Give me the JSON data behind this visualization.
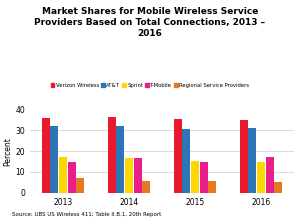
{
  "title": "Market Shares for Mobile Wireless Service\nProviders Based on Total Connections, 2013 –\n2016",
  "years": [
    "2013",
    "2014",
    "2015",
    "2016"
  ],
  "series": [
    {
      "label": "Verizon Wireless",
      "color": "#e8192c",
      "values": [
        36.0,
        36.5,
        35.2,
        35.0
      ]
    },
    {
      "label": "AT&T",
      "color": "#2e75b6",
      "values": [
        32.1,
        32.3,
        30.5,
        31.0
      ]
    },
    {
      "label": "Sprint",
      "color": "#ffd700",
      "values": [
        17.0,
        16.8,
        15.2,
        15.0
      ]
    },
    {
      "label": "T-Mobile",
      "color": "#e91e8c",
      "values": [
        15.0,
        16.8,
        15.0,
        17.0
      ]
    },
    {
      "label": "Regional Service Providers",
      "color": "#e87722",
      "values": [
        7.0,
        5.8,
        5.8,
        5.0
      ]
    }
  ],
  "ylabel": "Percent",
  "ylim": [
    0,
    40
  ],
  "yticks": [
    0,
    10,
    20,
    30,
    40
  ],
  "source": "Source: UBS US Wireless 411; Table II.B.1, 20th Report",
  "bar_width": 0.13
}
